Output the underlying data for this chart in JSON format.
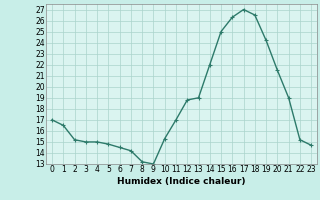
{
  "x": [
    0,
    1,
    2,
    3,
    4,
    5,
    6,
    7,
    8,
    9,
    10,
    11,
    12,
    13,
    14,
    15,
    16,
    17,
    18,
    19,
    20,
    21,
    22,
    23
  ],
  "y": [
    17.0,
    16.5,
    15.2,
    15.0,
    15.0,
    14.8,
    14.5,
    14.2,
    13.2,
    13.0,
    15.3,
    17.0,
    18.8,
    19.0,
    22.0,
    25.0,
    26.3,
    27.0,
    26.5,
    24.2,
    21.5,
    19.0,
    15.2,
    14.7
  ],
  "xlabel": "Humidex (Indice chaleur)",
  "xlim": [
    -0.5,
    23.5
  ],
  "ylim": [
    13,
    27.5
  ],
  "yticks": [
    13,
    14,
    15,
    16,
    17,
    18,
    19,
    20,
    21,
    22,
    23,
    24,
    25,
    26,
    27
  ],
  "xticks": [
    0,
    1,
    2,
    3,
    4,
    5,
    6,
    7,
    8,
    9,
    10,
    11,
    12,
    13,
    14,
    15,
    16,
    17,
    18,
    19,
    20,
    21,
    22,
    23
  ],
  "line_color": "#2d7a6a",
  "marker": "+",
  "bg_color": "#c8eee8",
  "grid_color": "#aad4cc",
  "axis_bg": "#daf4f0",
  "tick_fontsize": 5.5,
  "xlabel_fontsize": 6.5,
  "linewidth": 1.0,
  "markersize": 3.5,
  "markeredgewidth": 0.8
}
